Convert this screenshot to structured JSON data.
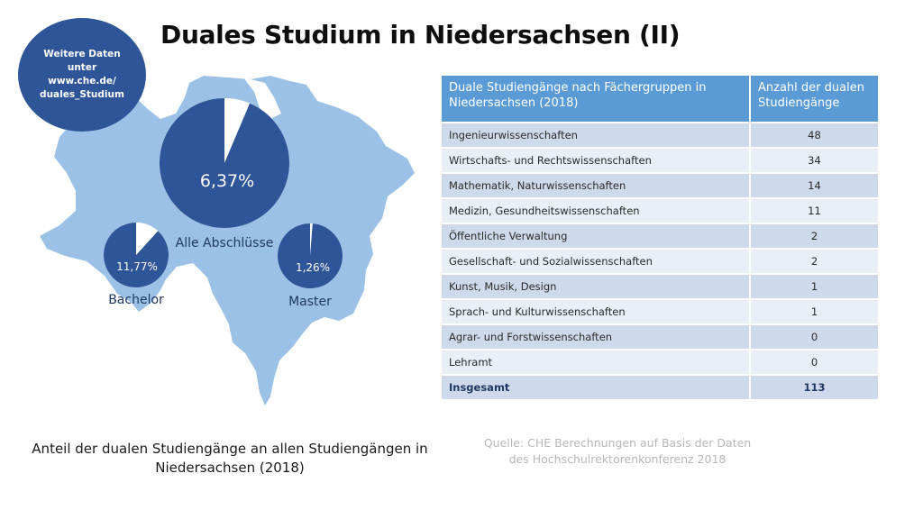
{
  "title": "Duales Studium in Niedersachsen (II)",
  "info": {
    "line1": "Weitere Daten",
    "line2": "unter",
    "line3": "www.che.de/",
    "line4": "duales_Studium"
  },
  "colors": {
    "map": "#9bc2e6",
    "pie_fill": "#2e5597",
    "pie_rest": "#ffffff",
    "table_header": "#5b9bd5",
    "table_odd": "#cfd9ec",
    "table_even": "#e9eef7"
  },
  "chart_data": [
    {
      "type": "pie",
      "id": "alle",
      "label": "Alle Abschlüsse",
      "value_text": "6,37%",
      "share_percent": 6.37
    },
    {
      "type": "pie",
      "id": "bachelor",
      "label": "Bachelor",
      "value_text": "11,77%",
      "share_percent": 11.77
    },
    {
      "type": "pie",
      "id": "master",
      "label": "Master",
      "value_text": "1,26%",
      "share_percent": 1.26
    },
    {
      "type": "table",
      "columns": [
        "Duale Studiengänge nach Fächergruppen in Niedersachsen (2018)",
        "Anzahl der dualen Studiengänge"
      ],
      "rows": [
        {
          "label": "Ingenieurwissenschaften",
          "value": "48"
        },
        {
          "label": "Wirtschafts- und Rechtswissenschaften",
          "value": "34"
        },
        {
          "label": "Mathematik, Naturwissenschaften",
          "value": "14"
        },
        {
          "label": "Medizin, Gesundheitswissenschaften",
          "value": "11"
        },
        {
          "label": "Öffentliche Verwaltung",
          "value": "2"
        },
        {
          "label": "Gesellschaft- und Sozialwissenschaften",
          "value": "2"
        },
        {
          "label": "Kunst, Musik, Design",
          "value": "1"
        },
        {
          "label": "Sprach- und Kulturwissenschaften",
          "value": "1"
        },
        {
          "label": "Agrar- und Forstwissenschaften",
          "value": "0"
        },
        {
          "label": "Lehramt",
          "value": "0"
        }
      ],
      "total": {
        "label": "Insgesamt",
        "value": "113"
      }
    }
  ],
  "caption": {
    "line1": "Anteil der dualen Studiengänge an allen Studiengängen in",
    "line2": "Niedersachsen (2018)"
  },
  "source": {
    "line1": "Quelle: CHE Berechnungen auf Basis der Daten",
    "line2": "des Hochschulrektorenkonferenz 2018"
  }
}
